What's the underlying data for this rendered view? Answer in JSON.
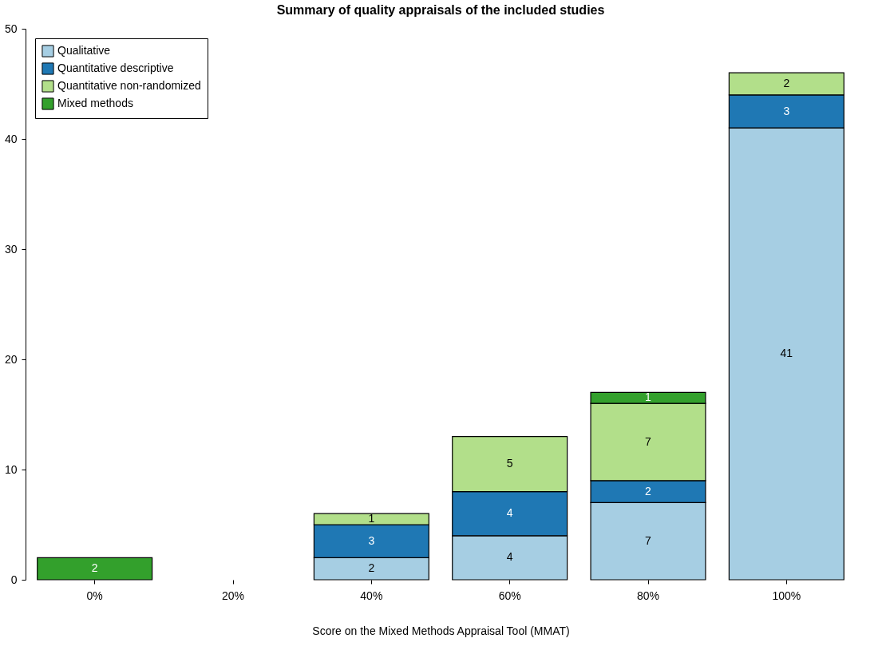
{
  "chart_data": {
    "type": "bar",
    "title": "Summary of quality appraisals of the included studies",
    "xlabel": "Score on the Mixed Methods Appraisal Tool (MMAT)",
    "categories": [
      "0%",
      "20%",
      "40%",
      "60%",
      "80%",
      "100%"
    ],
    "stacked": true,
    "data_labels": true,
    "legend": "top left",
    "grid": false,
    "ylim": [
      0,
      50
    ],
    "yticks": [
      0,
      10,
      20,
      30,
      40,
      50
    ],
    "series": [
      {
        "name": "Qualitative",
        "color": "#a6cee3",
        "values": [
          null,
          null,
          2,
          4,
          7,
          41
        ]
      },
      {
        "name": "Quantitative descriptive",
        "color": "#1f78b4",
        "values": [
          null,
          null,
          3,
          4,
          2,
          3
        ]
      },
      {
        "name": "Quantitative non-randomized",
        "color": "#b2df8a",
        "values": [
          null,
          null,
          1,
          5,
          7,
          2
        ]
      },
      {
        "name": "Mixed methods",
        "color": "#33a02c",
        "values": [
          2,
          null,
          null,
          null,
          1,
          null
        ]
      }
    ]
  }
}
